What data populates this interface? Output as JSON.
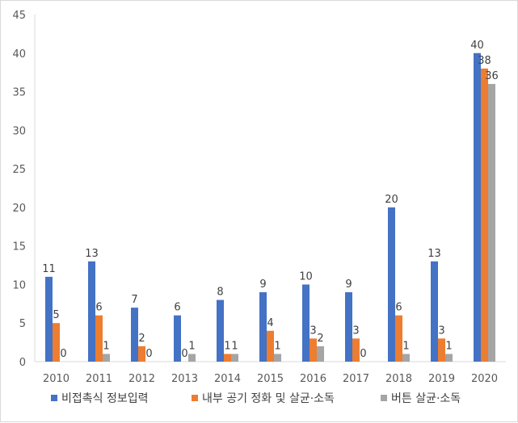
{
  "chart_data": {
    "type": "bar",
    "categories": [
      "2010",
      "2011",
      "2012",
      "2013",
      "2014",
      "2015",
      "2016",
      "2017",
      "2018",
      "2019",
      "2020"
    ],
    "series": [
      {
        "name": "비접촉식 정보입력",
        "color": "#4472C4",
        "values": [
          11,
          13,
          7,
          6,
          8,
          9,
          10,
          9,
          20,
          13,
          40
        ]
      },
      {
        "name": "내부 공기 정화 및 살균·소독",
        "color": "#ED7D31",
        "values": [
          5,
          6,
          2,
          0,
          1,
          4,
          3,
          3,
          6,
          3,
          38
        ]
      },
      {
        "name": "버튼 살균·소독",
        "color": "#A5A5A5",
        "values": [
          0,
          1,
          0,
          1,
          1,
          1,
          2,
          0,
          1,
          1,
          36
        ]
      }
    ],
    "ylim": [
      0,
      45
    ],
    "yticks": [
      0,
      5,
      10,
      15,
      20,
      25,
      30,
      35,
      40,
      45
    ],
    "grid": false,
    "legend_position": "bottom",
    "data_labels": true
  }
}
